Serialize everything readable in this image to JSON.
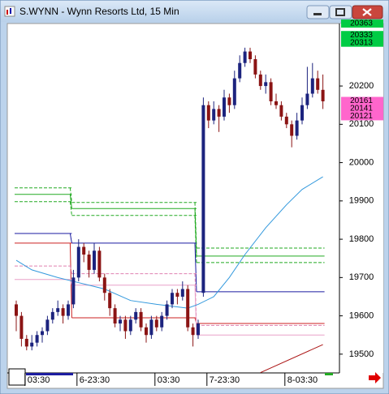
{
  "chart_data": {
    "type": "candlestick",
    "title": "S.WYNN - Wynn Resorts Ltd, 15 Min",
    "ylim": [
      194.51,
      203.61
    ],
    "yticks": [
      {
        "value": 195,
        "label": "19500"
      },
      {
        "value": 196,
        "label": "19600"
      },
      {
        "value": 197,
        "label": "19700"
      },
      {
        "value": 198,
        "label": "19800"
      },
      {
        "value": 199,
        "label": "19900"
      },
      {
        "value": 200,
        "label": "20000"
      },
      {
        "value": 201,
        "label": "20100"
      },
      {
        "value": 202,
        "label": "20200"
      }
    ],
    "categories": [
      null,
      null,
      "03:30",
      null,
      null,
      null,
      null,
      null,
      null,
      null,
      null,
      null,
      "6-23:30",
      null,
      null,
      null,
      null,
      null,
      null,
      null,
      null,
      null,
      null,
      null,
      null,
      null,
      null,
      "03:30",
      null,
      null,
      null,
      null,
      null,
      null,
      null,
      null,
      null,
      "7-23:30",
      null,
      null,
      null,
      null,
      null,
      null,
      null,
      null,
      null,
      null,
      null,
      null,
      null,
      null,
      "8-03:30",
      null,
      null,
      null,
      null,
      null,
      null,
      null
    ],
    "up_color": "#1c237e",
    "down_color": "#8b1414",
    "open": [
      196.3,
      196.0,
      195.4,
      195.2,
      195.3,
      195.5,
      195.6,
      195.9,
      196.1,
      196.2,
      196.0,
      196.3,
      197.0,
      197.8,
      197.6,
      197.2,
      197.7,
      197.0,
      196.6,
      196.2,
      195.8,
      195.9,
      195.6,
      195.9,
      196.1,
      195.7,
      195.5,
      195.9,
      195.7,
      196.0,
      196.3,
      196.6,
      196.5,
      196.7,
      195.7,
      195.5,
      196.6,
      201.5,
      201.1,
      201.4,
      201.2,
      201.7,
      201.5,
      202.2,
      202.6,
      202.9,
      202.7,
      202.3,
      202.0,
      202.1,
      201.6,
      201.5,
      201.2,
      201.0,
      200.7,
      201.1,
      201.5,
      201.8,
      202.2,
      201.9
    ],
    "high": [
      196.4,
      196.1,
      195.5,
      195.5,
      195.6,
      195.7,
      196.0,
      196.2,
      196.4,
      196.3,
      196.4,
      197.2,
      198.0,
      197.9,
      197.7,
      197.9,
      197.8,
      197.1,
      196.7,
      196.3,
      196.0,
      196.0,
      196.0,
      196.2,
      196.2,
      195.8,
      196.0,
      196.0,
      196.1,
      196.4,
      196.7,
      196.7,
      196.9,
      196.8,
      195.8,
      195.9,
      201.7,
      201.6,
      201.6,
      201.5,
      201.9,
      201.8,
      202.4,
      202.8,
      203.0,
      203.0,
      202.8,
      202.4,
      202.3,
      202.2,
      201.8,
      201.6,
      201.3,
      201.1,
      201.3,
      201.7,
      202.5,
      202.6,
      202.4,
      202.3
    ],
    "low": [
      195.6,
      195.2,
      195.1,
      195.1,
      195.2,
      195.3,
      195.5,
      195.8,
      196.0,
      195.8,
      195.9,
      196.2,
      196.9,
      197.4,
      197.0,
      197.1,
      196.9,
      196.4,
      196.0,
      195.7,
      195.6,
      195.4,
      195.5,
      195.8,
      195.6,
      195.3,
      195.4,
      195.6,
      195.6,
      195.9,
      196.2,
      196.3,
      196.4,
      195.6,
      195.2,
      195.4,
      196.5,
      200.9,
      201.0,
      200.8,
      201.1,
      201.3,
      201.4,
      202.1,
      202.5,
      202.6,
      202.2,
      201.9,
      201.8,
      201.5,
      201.4,
      201.1,
      200.9,
      200.4,
      200.6,
      201.0,
      201.4,
      201.7,
      201.8,
      201.4
    ],
    "close": [
      196.0,
      195.4,
      195.2,
      195.3,
      195.5,
      195.6,
      195.9,
      196.1,
      196.2,
      196.0,
      196.3,
      197.0,
      197.8,
      197.6,
      197.2,
      197.7,
      197.0,
      196.6,
      196.2,
      195.8,
      195.9,
      195.6,
      195.9,
      196.1,
      195.7,
      195.5,
      195.9,
      195.7,
      196.0,
      196.3,
      196.6,
      196.5,
      196.7,
      195.7,
      195.5,
      195.8,
      201.5,
      201.1,
      201.4,
      201.2,
      201.7,
      201.5,
      202.2,
      202.6,
      202.9,
      202.7,
      202.3,
      202.0,
      202.1,
      201.6,
      201.5,
      201.2,
      201.0,
      200.7,
      201.1,
      201.5,
      201.8,
      202.2,
      201.9,
      201.6
    ],
    "overlays": [
      {
        "kind": "step",
        "color": "#22aa22",
        "dash": true,
        "x": [
          0,
          11,
          35
        ],
        "values": [
          199.34,
          198.96,
          197.77
        ]
      },
      {
        "kind": "step",
        "color": "#22aa22",
        "dash": false,
        "x": [
          0,
          11,
          35
        ],
        "values": [
          199.17,
          198.8,
          197.56
        ]
      },
      {
        "kind": "step",
        "color": "#22aa22",
        "dash": true,
        "x": [
          0,
          11,
          35
        ],
        "values": [
          198.98,
          198.62,
          197.39
        ]
      },
      {
        "kind": "step",
        "color": "#1a1aa0",
        "dash": false,
        "x": [
          0,
          11,
          35
        ],
        "values": [
          198.15,
          197.9,
          196.63
        ]
      },
      {
        "kind": "step",
        "color": "#cc2222",
        "dash": false,
        "x": [
          0,
          11,
          35
        ],
        "values": [
          197.9,
          195.95,
          195.8
        ]
      },
      {
        "kind": "step",
        "color": "#e080b0",
        "dash": true,
        "x": [
          0,
          11,
          35
        ],
        "values": [
          197.3,
          197.1,
          195.75
        ]
      },
      {
        "kind": "step",
        "color": "#e8a0c8",
        "dash": false,
        "x": [
          0,
          11,
          35
        ],
        "values": [
          196.95,
          196.8,
          195.5
        ]
      },
      {
        "kind": "line",
        "color": "#3399dd",
        "dash": false,
        "x": [
          0,
          3,
          8,
          11,
          17,
          22,
          27,
          33,
          35,
          38,
          41,
          44,
          48,
          52,
          55,
          59
        ],
        "values": [
          197.45,
          197.2,
          197.0,
          196.9,
          196.7,
          196.4,
          196.3,
          196.2,
          196.3,
          196.5,
          197.0,
          197.6,
          198.3,
          198.9,
          199.3,
          199.63
        ]
      },
      {
        "kind": "line",
        "color": "#aa1111",
        "dash": false,
        "x": [
          47,
          59
        ],
        "values": [
          194.52,
          195.25
        ]
      }
    ],
    "price_tags": [
      {
        "value": 203.63,
        "label": "20363",
        "color": "#00cc44"
      },
      {
        "value": 203.33,
        "label": "20333",
        "color": "#00cc44"
      },
      {
        "value": 203.13,
        "label": "20313",
        "color": "#00cc44"
      },
      {
        "value": 201.61,
        "label": "20161",
        "color": "#ff66cc"
      },
      {
        "value": 201.41,
        "label": "20141",
        "color": "#ff66cc"
      },
      {
        "value": 201.21,
        "label": "20121",
        "color": "#ff66cc"
      }
    ]
  }
}
